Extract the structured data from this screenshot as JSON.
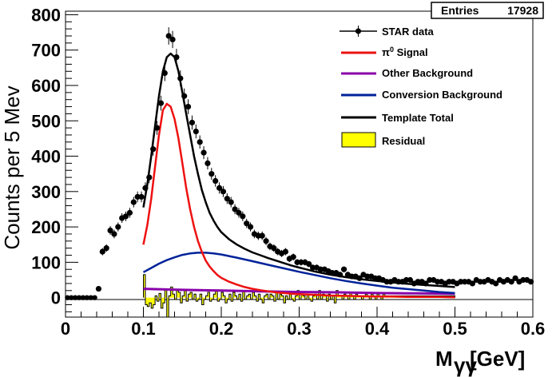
{
  "chart_data": {
    "type": "scatter",
    "xlabel_main": "M",
    "xlabel_sub": "γγ",
    "xlabel_unit": "[GeV]",
    "ylabel": "Counts per 5 Mev",
    "xlim": [
      0,
      0.6
    ],
    "ylim": [
      -55,
      810
    ],
    "x_ticks": [
      0,
      0.1,
      0.2,
      0.3,
      0.4,
      0.5,
      0.6
    ],
    "x_tick_labels": [
      "0",
      "0.1",
      "0.2",
      "0.3",
      "0.4",
      "0.5",
      "0.6"
    ],
    "y_ticks": [
      0,
      100,
      200,
      300,
      400,
      500,
      600,
      700,
      800
    ],
    "y_tick_labels": [
      "0",
      "100",
      "200",
      "300",
      "400",
      "500",
      "600",
      "700",
      "800"
    ],
    "stats": {
      "label": "Entries",
      "value": "17928"
    },
    "legend": {
      "data": "STAR data",
      "signal_prefix": "π",
      "signal_sup": "0",
      "signal_suffix": " Signal",
      "other": "Other Background",
      "conversion": "Conversion Background",
      "total": "Template Total",
      "residual": "Residual"
    },
    "colors": {
      "data": "#000000",
      "signal": "#ee1111",
      "other": "#8800aa",
      "conversion": "#002299",
      "total": "#000000",
      "residual_fill": "#ffff00"
    },
    "data_points": {
      "x": [
        0.0025,
        0.0075,
        0.0125,
        0.0175,
        0.0225,
        0.0275,
        0.0325,
        0.0375,
        0.0425,
        0.0475,
        0.0525,
        0.0575,
        0.0625,
        0.0675,
        0.0725,
        0.0775,
        0.0825,
        0.0875,
        0.0925,
        0.0975,
        0.1025,
        0.1075,
        0.1125,
        0.1175,
        0.1225,
        0.1275,
        0.1325,
        0.1375,
        0.1425,
        0.1475,
        0.1525,
        0.1575,
        0.1625,
        0.1675,
        0.1725,
        0.1775,
        0.1825,
        0.1875,
        0.1925,
        0.1975,
        0.2025,
        0.2075,
        0.2125,
        0.2175,
        0.2225,
        0.2275,
        0.2325,
        0.2375,
        0.2425,
        0.2475,
        0.2525,
        0.2575,
        0.2625,
        0.2675,
        0.2725,
        0.2775,
        0.2825,
        0.2875,
        0.2925,
        0.2975,
        0.3025,
        0.3075,
        0.3125,
        0.3175,
        0.3225,
        0.3275,
        0.3325,
        0.3375,
        0.3425,
        0.3475,
        0.3525,
        0.3575,
        0.3625,
        0.3675,
        0.3725,
        0.3775,
        0.3825,
        0.3875,
        0.3925,
        0.3975,
        0.4025,
        0.4075,
        0.4125,
        0.4175,
        0.4225,
        0.4275,
        0.4325,
        0.4375,
        0.4425,
        0.4475,
        0.4525,
        0.4575,
        0.4625,
        0.4675,
        0.4725,
        0.4775,
        0.4825,
        0.4875,
        0.4925,
        0.4975,
        0.5025,
        0.5075,
        0.5125,
        0.5175,
        0.5225,
        0.5275,
        0.5325,
        0.5375,
        0.5425,
        0.5475,
        0.5525,
        0.5575,
        0.5625,
        0.5675,
        0.5725,
        0.5775,
        0.5825,
        0.5875,
        0.5925,
        0.5975
      ],
      "y": [
        0,
        0,
        0,
        0,
        0,
        0,
        0,
        0,
        25,
        130,
        140,
        190,
        180,
        200,
        225,
        230,
        240,
        270,
        285,
        285,
        310,
        340,
        420,
        480,
        550,
        635,
        740,
        730,
        680,
        620,
        570,
        540,
        495,
        470,
        440,
        410,
        380,
        350,
        330,
        310,
        300,
        280,
        270,
        250,
        240,
        230,
        210,
        200,
        180,
        175,
        175,
        160,
        145,
        140,
        130,
        125,
        130,
        110,
        115,
        100,
        100,
        100,
        95,
        85,
        85,
        80,
        80,
        75,
        70,
        70,
        65,
        80,
        65,
        60,
        60,
        55,
        65,
        60,
        60,
        55,
        55,
        50,
        45,
        45,
        50,
        45,
        45,
        50,
        50,
        40,
        45,
        45,
        40,
        50,
        50,
        45,
        45,
        40,
        45,
        45,
        40,
        45,
        45,
        45,
        40,
        50,
        45,
        45,
        50,
        45,
        40,
        50,
        45,
        50,
        45,
        55,
        45,
        50,
        50,
        45
      ]
    },
    "signal_curve": {
      "x": [
        0.1,
        0.105,
        0.11,
        0.115,
        0.12,
        0.125,
        0.13,
        0.135,
        0.14,
        0.145,
        0.15,
        0.155,
        0.16,
        0.165,
        0.17,
        0.175,
        0.18,
        0.185,
        0.19,
        0.195,
        0.2,
        0.21,
        0.22,
        0.23,
        0.24,
        0.25,
        0.26,
        0.27,
        0.28,
        0.29,
        0.3,
        0.32,
        0.34,
        0.36,
        0.38,
        0.4,
        0.42,
        0.44,
        0.46,
        0.48,
        0.5
      ],
      "y": [
        150,
        205,
        280,
        370,
        460,
        530,
        548,
        540,
        505,
        450,
        380,
        310,
        250,
        200,
        160,
        130,
        105,
        88,
        75,
        64,
        56,
        45,
        37,
        30,
        25,
        21,
        18,
        15,
        13,
        11,
        10,
        8,
        6,
        5,
        4,
        3,
        3,
        2,
        2,
        2,
        1
      ]
    },
    "conversion_curve": {
      "x": [
        0.1,
        0.11,
        0.12,
        0.13,
        0.14,
        0.15,
        0.16,
        0.17,
        0.18,
        0.19,
        0.2,
        0.22,
        0.24,
        0.26,
        0.28,
        0.3,
        0.32,
        0.34,
        0.36,
        0.38,
        0.4,
        0.42,
        0.44,
        0.46,
        0.48,
        0.5
      ],
      "y": [
        72,
        84,
        96,
        106,
        114,
        121,
        125,
        127,
        127,
        125,
        122,
        113,
        103,
        93,
        83,
        73,
        64,
        55,
        47,
        40,
        34,
        28,
        24,
        20,
        16,
        13
      ]
    },
    "other_curve": {
      "x": [
        0.1,
        0.15,
        0.2,
        0.25,
        0.3,
        0.35,
        0.4,
        0.45,
        0.5
      ],
      "y": [
        25,
        22,
        20,
        18,
        16,
        15,
        13,
        12,
        11
      ]
    },
    "total_curve": {
      "x": [
        0.1,
        0.105,
        0.11,
        0.115,
        0.12,
        0.125,
        0.13,
        0.135,
        0.14,
        0.145,
        0.15,
        0.155,
        0.16,
        0.165,
        0.17,
        0.175,
        0.18,
        0.185,
        0.19,
        0.195,
        0.2,
        0.21,
        0.22,
        0.23,
        0.24,
        0.25,
        0.26,
        0.27,
        0.28,
        0.29,
        0.3,
        0.32,
        0.34,
        0.36,
        0.38,
        0.4,
        0.42,
        0.44,
        0.46,
        0.48,
        0.5
      ],
      "y": [
        255,
        320,
        400,
        485,
        570,
        640,
        680,
        690,
        680,
        640,
        580,
        520,
        460,
        400,
        350,
        305,
        270,
        240,
        218,
        200,
        185,
        165,
        150,
        138,
        128,
        120,
        112,
        105,
        98,
        91,
        85,
        74,
        65,
        58,
        52,
        47,
        43,
        39,
        36,
        33,
        30
      ]
    },
    "residual": {
      "bin_edges_start": 0.1,
      "bin_width": 0.0025,
      "values": [
        65,
        -20,
        -25,
        -15,
        -30,
        -20,
        5,
        -10,
        12,
        -30,
        -15,
        25,
        -55,
        5,
        30,
        10,
        -5,
        20,
        15,
        -15,
        5,
        20,
        -10,
        10,
        15,
        -5,
        10,
        -10,
        -5,
        10,
        -20,
        -5,
        5,
        15,
        -10,
        -5,
        10,
        20,
        -10,
        -5,
        15,
        5,
        -15,
        -5,
        10,
        -10,
        15,
        5,
        -5,
        10,
        -10,
        20,
        -5,
        5,
        10,
        -5,
        15,
        5,
        -10,
        10,
        -5,
        -15,
        5,
        10,
        -5,
        10,
        5,
        -10,
        15,
        -5,
        10,
        5,
        -15,
        5,
        -5,
        10,
        -5,
        -10,
        5,
        20,
        -5,
        10,
        5,
        -5,
        10,
        -5,
        -10,
        5,
        10,
        -5,
        20,
        -5,
        10,
        5,
        -10,
        10,
        -5,
        5,
        -15,
        20,
        5,
        5,
        -5,
        10,
        5,
        -5,
        15,
        5,
        -5,
        10,
        5,
        5,
        -5,
        5,
        10,
        5,
        -5,
        10,
        5,
        -5,
        10,
        5,
        -5,
        10,
        5,
        5,
        5,
        5,
        5,
        5,
        5,
        5,
        5,
        5,
        5,
        5,
        5,
        5,
        5,
        5,
        5,
        5,
        5,
        5,
        5,
        5,
        5,
        5,
        5,
        5,
        5,
        5,
        5,
        5,
        5,
        5,
        5,
        5,
        5,
        5,
        5,
        5,
        5,
        5,
        5,
        5,
        5,
        5,
        5,
        5,
        5
      ]
    }
  }
}
